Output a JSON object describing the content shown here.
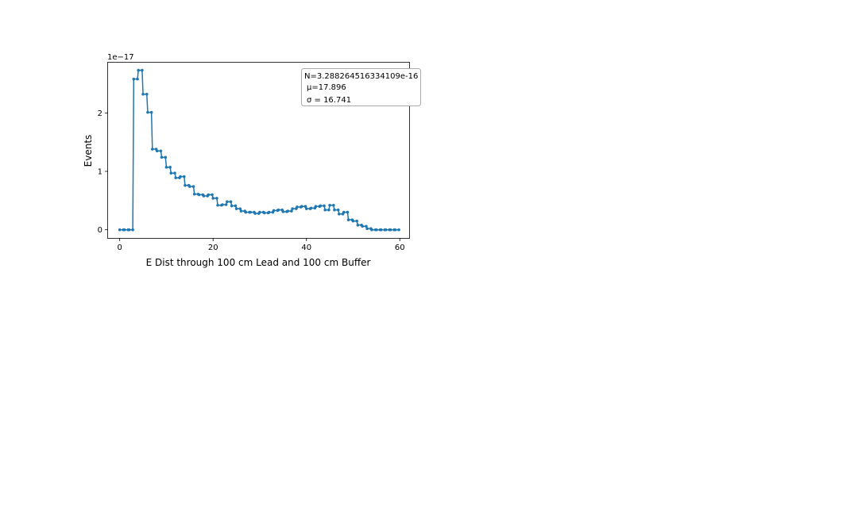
{
  "chart_data": {
    "type": "line",
    "style": "step",
    "title": "",
    "xlabel": "E Dist through 100 cm Lead and 100 cm Buffer",
    "ylabel": "Events",
    "y_offset_label": "1e−17",
    "xlim": [
      -2.5,
      62
    ],
    "ylim": [
      -0.14,
      2.86
    ],
    "x_ticks": [
      0,
      20,
      40,
      60
    ],
    "x_tick_labels": [
      "0",
      "20",
      "40",
      "60"
    ],
    "y_ticks": [
      0,
      1,
      2
    ],
    "y_tick_labels": [
      "0",
      "1",
      "2"
    ],
    "grid": false,
    "legend": "none",
    "color": "#1f77b4",
    "annotation": {
      "line_n": "N=3.288264516334109e-16",
      "line_mu": "μ=17.896",
      "line_sigma": "σ = 16.741",
      "placement": "top-right"
    },
    "series": [
      {
        "x": [
          0,
          1,
          2,
          3,
          4,
          5,
          6,
          7,
          8,
          9,
          10,
          11,
          12,
          13,
          14,
          15,
          16,
          17,
          18,
          19,
          20,
          21,
          22,
          23,
          24,
          25,
          26,
          27,
          28,
          29,
          30,
          31,
          32,
          33,
          34,
          35,
          36,
          37,
          38,
          39,
          40,
          41,
          42,
          43,
          44,
          45,
          46,
          47,
          48,
          49,
          50,
          51,
          52,
          53,
          54,
          55,
          56,
          57,
          58,
          59
        ],
        "values": [
          0,
          0,
          0,
          2.58,
          2.73,
          2.32,
          2.01,
          1.38,
          1.35,
          1.24,
          1.07,
          0.97,
          0.89,
          0.91,
          0.76,
          0.74,
          0.61,
          0.6,
          0.58,
          0.6,
          0.54,
          0.42,
          0.43,
          0.48,
          0.41,
          0.36,
          0.32,
          0.3,
          0.3,
          0.28,
          0.3,
          0.29,
          0.3,
          0.33,
          0.34,
          0.31,
          0.32,
          0.36,
          0.39,
          0.4,
          0.36,
          0.37,
          0.4,
          0.41,
          0.34,
          0.42,
          0.34,
          0.27,
          0.3,
          0.17,
          0.15,
          0.08,
          0.06,
          0.02,
          0,
          0,
          0,
          0,
          0,
          0
        ]
      }
    ]
  }
}
